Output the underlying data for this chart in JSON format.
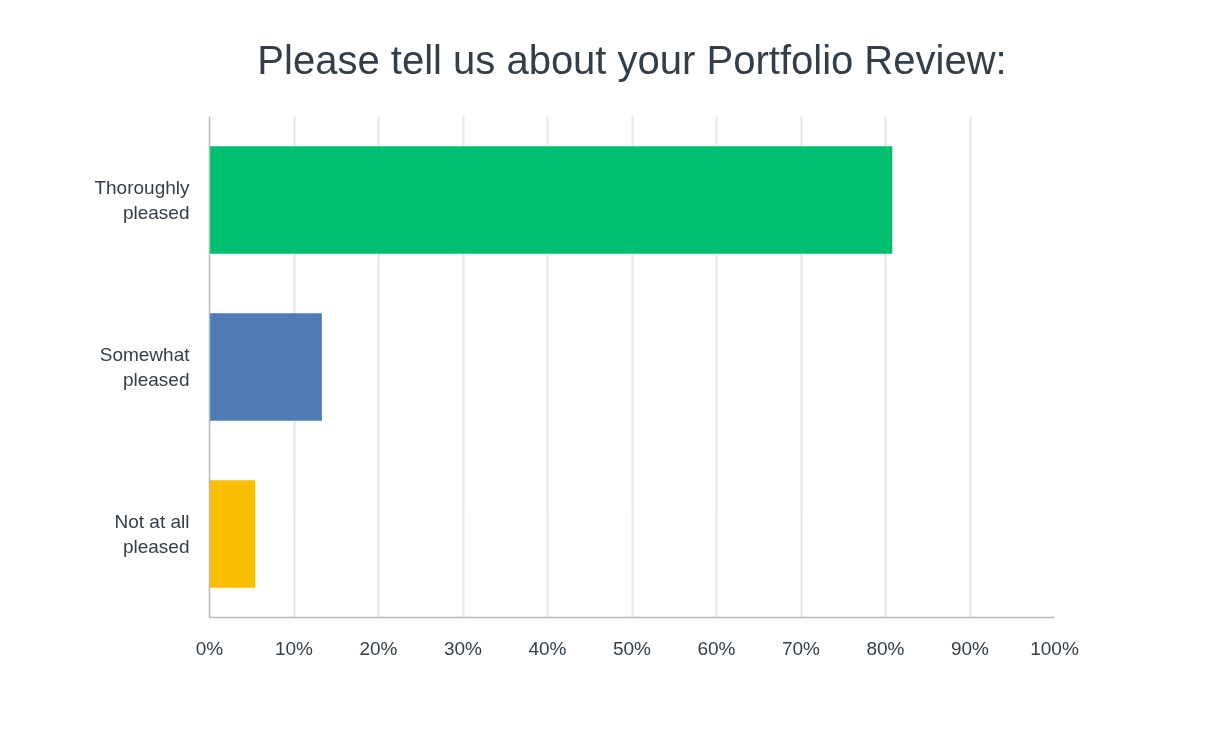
{
  "chart_data": {
    "type": "bar",
    "orientation": "horizontal",
    "title": "Please tell us about your Portfolio Review:",
    "categories": [
      "Thoroughly pleased",
      "Somewhat pleased",
      "Not at all pleased"
    ],
    "values": [
      80.8,
      13.3,
      5.4
    ],
    "colors": [
      "#00bf6f",
      "#507cb6",
      "#f9be00"
    ],
    "xlim": [
      0,
      100
    ],
    "xticks": [
      {
        "value": 0,
        "label": "0%"
      },
      {
        "value": 10,
        "label": "10%"
      },
      {
        "value": 20,
        "label": "20%"
      },
      {
        "value": 30,
        "label": "30%"
      },
      {
        "value": 40,
        "label": "40%"
      },
      {
        "value": 50,
        "label": "50%"
      },
      {
        "value": 60,
        "label": "60%"
      },
      {
        "value": 70,
        "label": "70%"
      },
      {
        "value": 80,
        "label": "80%"
      },
      {
        "value": 90,
        "label": "90%"
      },
      {
        "value": 100,
        "label": "100%"
      }
    ],
    "grid": "x"
  }
}
